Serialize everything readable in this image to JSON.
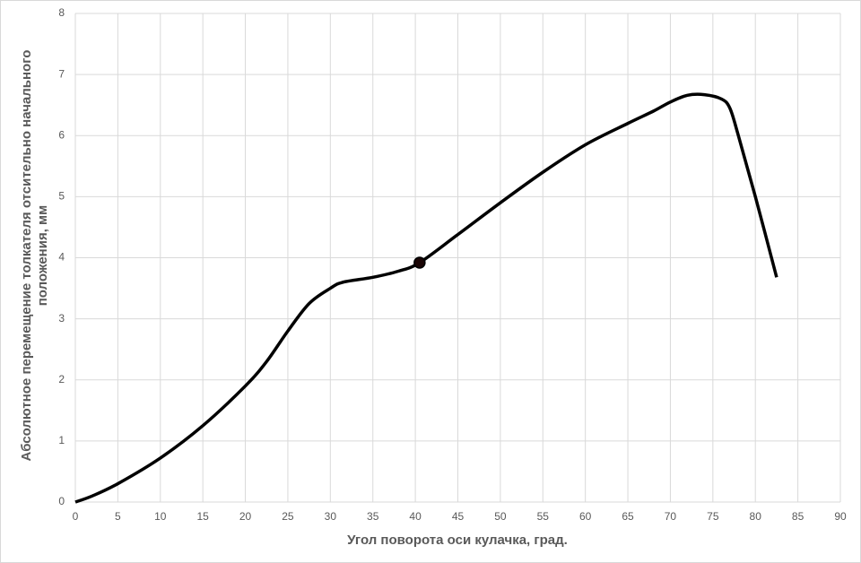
{
  "chart_data": {
    "type": "line",
    "x_label": "Угол поворота оси кулачка, град.",
    "y_label": [
      "Абсолютное перемещение толкателя отсительно начального",
      "положения, мм"
    ],
    "xlim": [
      0,
      90
    ],
    "xticks": [
      0,
      5,
      10,
      15,
      20,
      25,
      30,
      35,
      40,
      45,
      50,
      55,
      60,
      65,
      70,
      75,
      80,
      85,
      90
    ],
    "ylim": [
      0,
      8
    ],
    "yticks": [
      0,
      1,
      2,
      3,
      4,
      5,
      6,
      7,
      8
    ],
    "grid": true,
    "series": [
      {
        "color": "#000000",
        "x": [
          0,
          2,
          5,
          10,
          15,
          20,
          22.5,
          25,
          27.5,
          30,
          31.5,
          35,
          38,
          40.5,
          45,
          50,
          55,
          60,
          65,
          68,
          70,
          72,
          74,
          76,
          77,
          78,
          80,
          82.5
        ],
        "values": [
          0,
          0.1,
          0.3,
          0.72,
          1.25,
          1.9,
          2.3,
          2.8,
          3.25,
          3.5,
          3.6,
          3.68,
          3.78,
          3.92,
          4.38,
          4.9,
          5.4,
          5.85,
          6.2,
          6.4,
          6.55,
          6.66,
          6.67,
          6.6,
          6.45,
          6.0,
          5.0,
          3.68
        ]
      }
    ],
    "highlight": {
      "x": 40.5,
      "y": 3.92,
      "color": "#1a0505"
    }
  }
}
